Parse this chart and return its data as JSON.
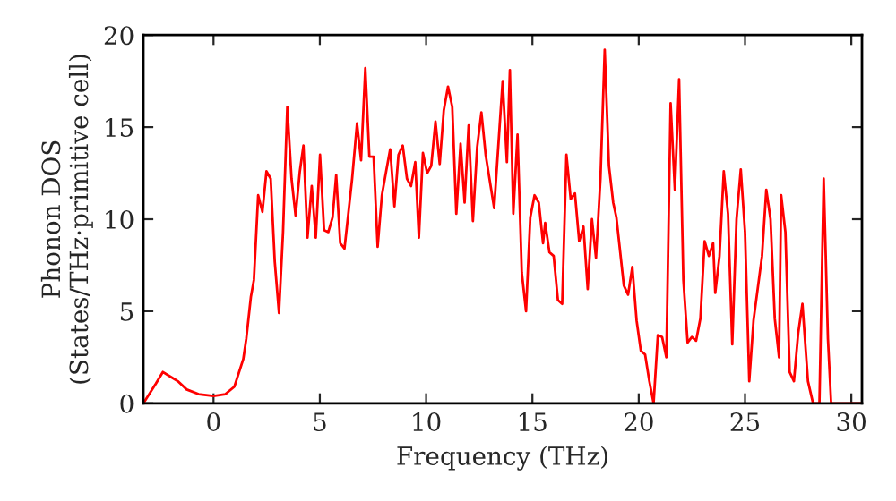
{
  "chart_data": {
    "type": "line",
    "xlabel": "Frequency (THz)",
    "ylabel": "Phonon DOS\n(States/THz·primitive cell)",
    "xlim": [
      -3.3,
      30.5
    ],
    "ylim": [
      0,
      20
    ],
    "xticks": [
      0,
      5,
      10,
      15,
      20,
      25,
      30
    ],
    "yticks": [
      0,
      5,
      10,
      15,
      20
    ],
    "grid": false,
    "legend": false,
    "marker": "none",
    "line_style": "solid",
    "series": [
      {
        "color": "#ff0000",
        "x": [
          -3.3,
          -2.71,
          -2.38,
          -1.96,
          -1.68,
          -1.26,
          -0.7,
          0,
          0.56,
          0.98,
          1.4,
          1.54,
          1.76,
          1.9,
          2.1,
          2.3,
          2.49,
          2.69,
          2.88,
          3.08,
          3.27,
          3.47,
          3.67,
          3.86,
          4.06,
          4.23,
          4.42,
          4.62,
          4.81,
          5.01,
          5.2,
          5.4,
          5.6,
          5.77,
          5.96,
          6.16,
          6.52,
          6.75,
          6.94,
          7.14,
          7.33,
          7.53,
          7.72,
          7.92,
          8.12,
          8.31,
          8.51,
          8.7,
          8.9,
          9.1,
          9.29,
          9.49,
          9.66,
          9.85,
          10.05,
          10.24,
          10.44,
          10.64,
          10.83,
          11.03,
          11.23,
          11.42,
          11.62,
          11.81,
          12.0,
          12.2,
          12.4,
          12.6,
          12.8,
          13.2,
          13.6,
          13.8,
          13.94,
          14.1,
          14.3,
          14.5,
          14.7,
          14.9,
          15.1,
          15.3,
          15.5,
          15.6,
          15.8,
          16.0,
          16.2,
          16.4,
          16.6,
          16.8,
          17.0,
          17.2,
          17.4,
          17.6,
          17.8,
          17.99,
          18.2,
          18.4,
          18.6,
          18.8,
          18.95,
          19.3,
          19.5,
          19.7,
          19.9,
          20.1,
          20.3,
          20.5,
          20.7,
          20.9,
          21.1,
          21.3,
          21.5,
          21.7,
          21.9,
          22.1,
          22.3,
          22.5,
          22.7,
          22.9,
          23.1,
          23.3,
          23.5,
          23.6,
          23.8,
          24.0,
          24.2,
          24.4,
          24.6,
          24.8,
          25.0,
          25.2,
          25.4,
          25.8,
          26.0,
          26.2,
          26.4,
          26.6,
          26.7,
          26.9,
          27.1,
          27.3,
          27.5,
          27.7,
          27.96,
          28.2,
          28.5,
          28.7,
          28.9,
          29.05,
          30.5
        ],
        "values": [
          0,
          1.07,
          1.7,
          1.4,
          1.2,
          0.75,
          0.5,
          0.4,
          0.5,
          0.9,
          2.4,
          3.5,
          5.8,
          6.7,
          11.3,
          10.4,
          12.6,
          12.2,
          7.7,
          4.9,
          9.3,
          16.1,
          12.2,
          10.2,
          12.6,
          14.0,
          9.0,
          11.8,
          9.0,
          13.5,
          9.4,
          9.3,
          10.1,
          12.4,
          8.7,
          8.4,
          12.2,
          15.2,
          13.2,
          18.2,
          13.4,
          13.4,
          8.5,
          11.3,
          12.6,
          13.8,
          10.7,
          13.5,
          14.0,
          12.2,
          11.8,
          13.1,
          9.0,
          13.6,
          12.5,
          12.9,
          15.3,
          13.0,
          15.9,
          17.2,
          16.1,
          10.3,
          14.1,
          10.9,
          15.1,
          9.9,
          13.9,
          15.8,
          13.5,
          10.6,
          17.5,
          13.1,
          18.1,
          10.3,
          14.6,
          7.1,
          5.0,
          10.1,
          11.3,
          10.9,
          8.7,
          9.8,
          8.2,
          8.0,
          5.6,
          5.4,
          13.5,
          11.1,
          11.4,
          8.8,
          9.6,
          6.2,
          10.0,
          7.9,
          12.2,
          19.2,
          12.9,
          10.9,
          10.1,
          6.4,
          5.9,
          7.4,
          4.5,
          2.85,
          2.65,
          1.2,
          0,
          3.7,
          3.6,
          2.5,
          16.3,
          11.6,
          17.6,
          6.7,
          3.3,
          3.6,
          3.4,
          4.6,
          8.8,
          8.0,
          8.7,
          6.0,
          8.0,
          12.6,
          10.3,
          3.2,
          10.0,
          12.7,
          9.3,
          1.2,
          4.5,
          8.0,
          11.6,
          10.0,
          4.6,
          2.5,
          11.3,
          9.3,
          1.7,
          1.2,
          3.8,
          5.4,
          1.2,
          0,
          0,
          12.2,
          3.5,
          0,
          0
        ]
      }
    ]
  }
}
